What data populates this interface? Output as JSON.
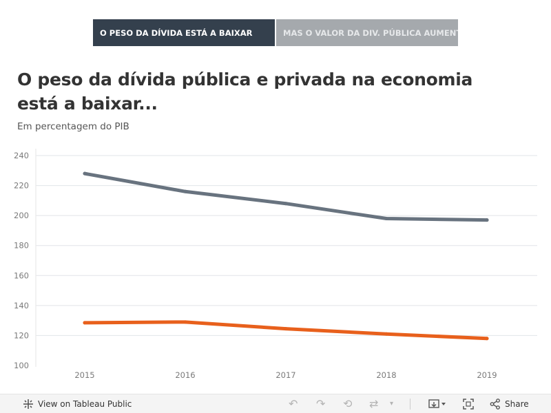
{
  "tabs": [
    {
      "label": "O PESO DA DÍVIDA ESTÁ A BAIXAR",
      "active": true
    },
    {
      "label": "MAS O VALOR DA DIV. PÚBLICA AUMENTA",
      "active": false
    }
  ],
  "title": "O peso da dívida pública e privada na economia está a baixar...",
  "subtitle": "Em percentagem do PIB",
  "chart_data": {
    "type": "line",
    "categories": [
      "2015",
      "2016",
      "2017",
      "2018",
      "2019"
    ],
    "series": [
      {
        "values": [
          228,
          216,
          208,
          198,
          197
        ],
        "color": "#68737f"
      },
      {
        "values": [
          128.5,
          129,
          124.5,
          121,
          118
        ],
        "color": "#e8601c"
      }
    ],
    "yticks": [
      100,
      120,
      140,
      160,
      180,
      200,
      220,
      240
    ],
    "ylim": [
      100,
      240
    ],
    "grid": true,
    "xlabel": "",
    "ylabel": ""
  },
  "footer": {
    "view_label": "View on Tableau Public",
    "share_label": "Share",
    "icons": {
      "tableau": "tableau-logo-icon",
      "undo": "undo-icon",
      "redo": "redo-icon",
      "revert": "revert-icon",
      "refresh": "refresh-icon",
      "pause": "pause-dropdown-icon",
      "download": "download-icon",
      "fullscreen": "fullscreen-icon",
      "share": "share-icon"
    }
  }
}
